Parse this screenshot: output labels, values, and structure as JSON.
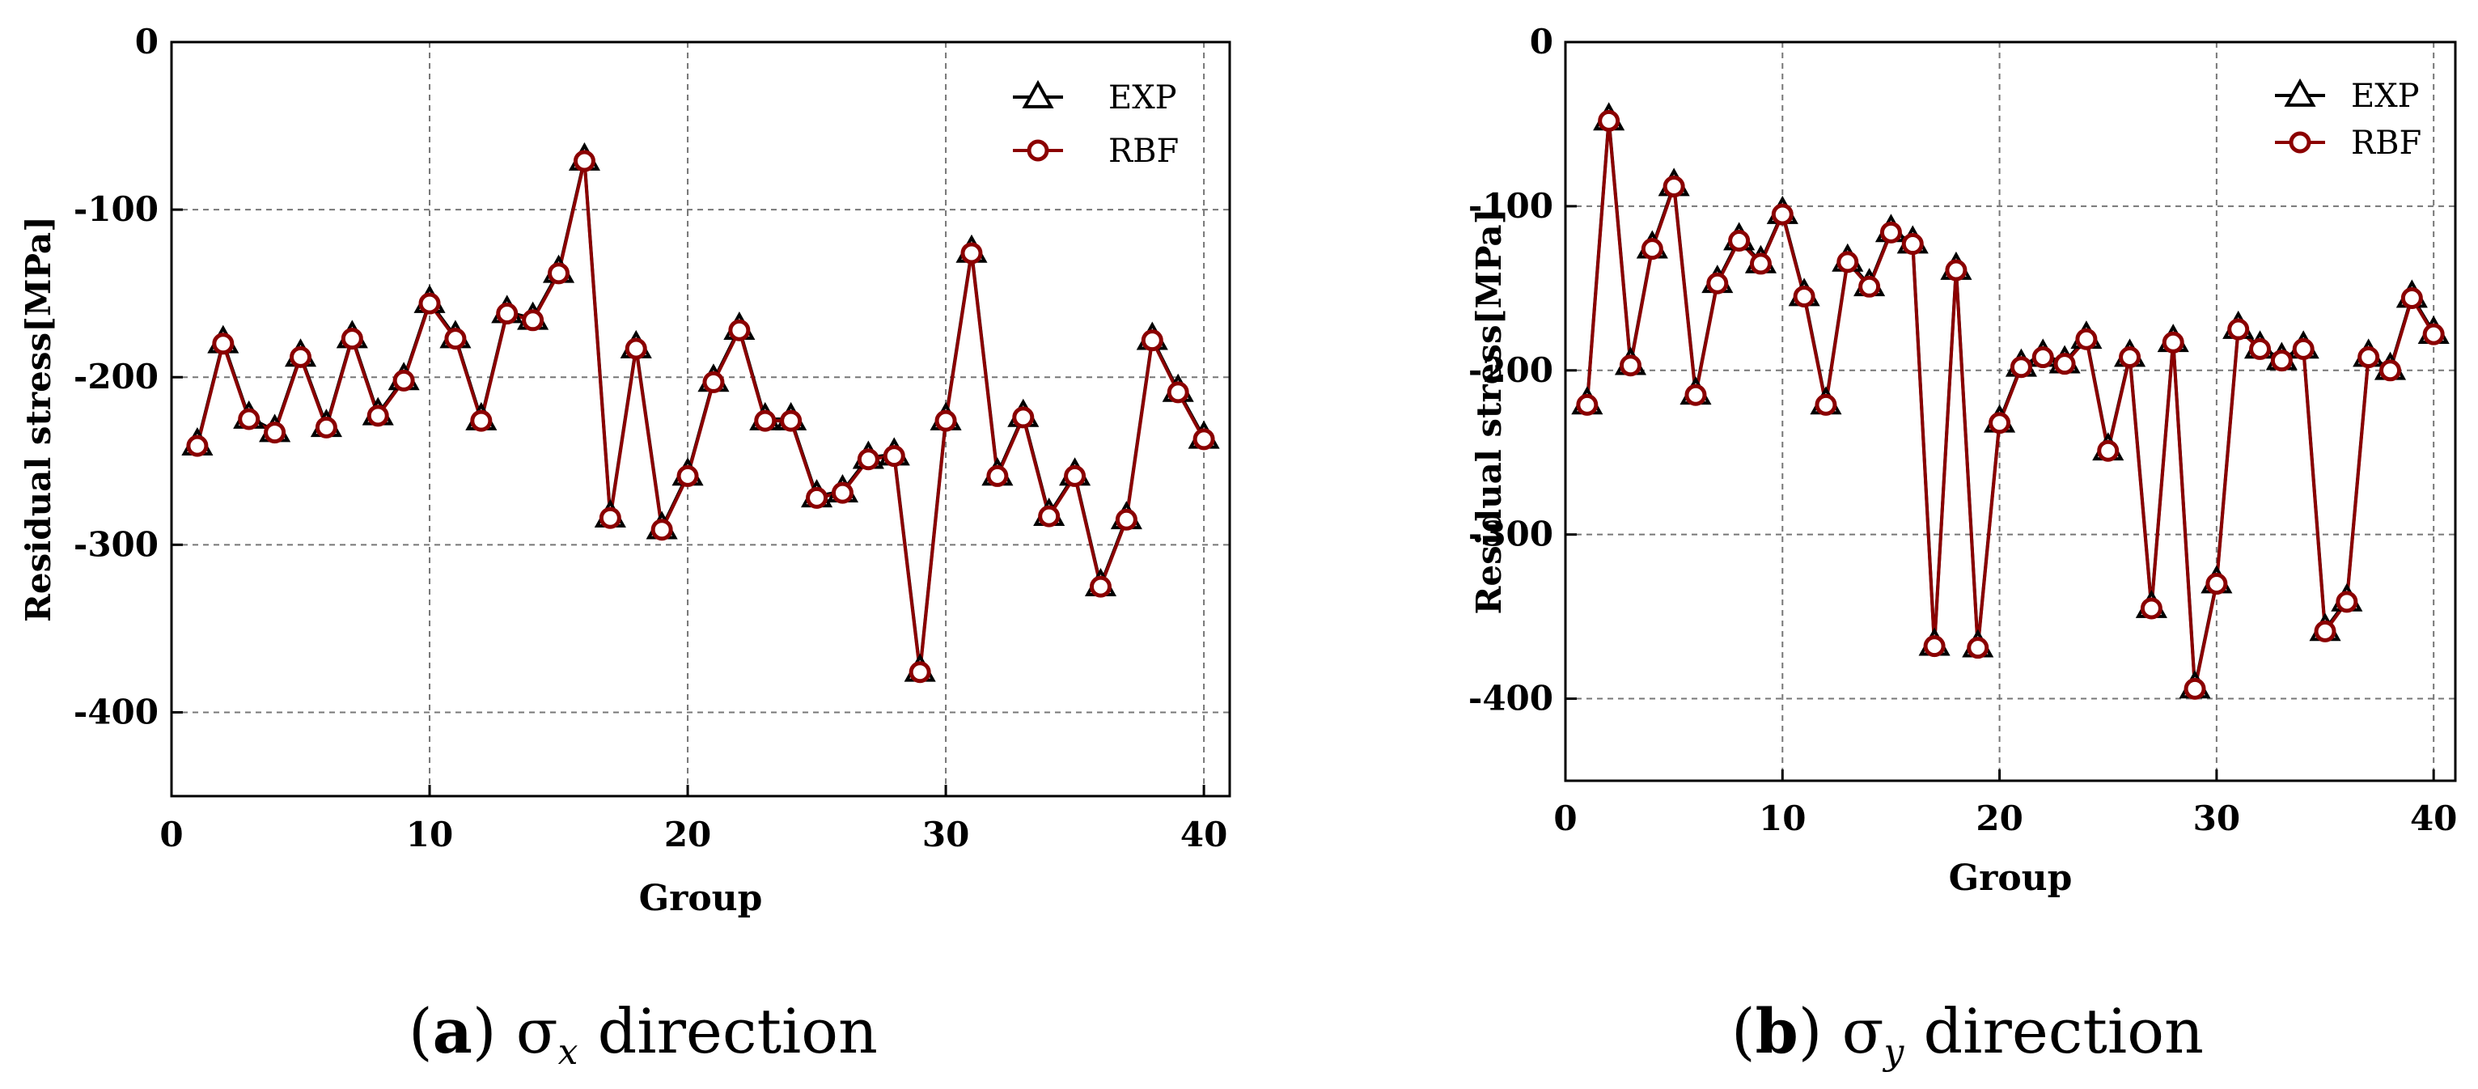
{
  "legend": {
    "exp_label": "EXP",
    "rbf_label": "RBF"
  },
  "colors": {
    "rbf": "#8B0000",
    "exp": "#000000",
    "grid": "#777777",
    "axis": "#000000"
  },
  "captions": [
    {
      "letter": "a",
      "symbol": "σ",
      "subscript": "x",
      "rest": "direction"
    },
    {
      "letter": "b",
      "symbol": "σ",
      "subscript": "y",
      "rest": "direction"
    }
  ],
  "chart_data": [
    {
      "type": "line",
      "title": "",
      "xlabel": "Group",
      "ylabel": "Residual stress[MPa]",
      "xlim": [
        0,
        41
      ],
      "ylim": [
        -450,
        0
      ],
      "xticks": [
        0,
        10,
        20,
        30,
        40
      ],
      "yticks": [
        0,
        -100,
        -200,
        -300,
        -400
      ],
      "grid": true,
      "legend_position": "top-right",
      "x": [
        1,
        2,
        3,
        4,
        5,
        6,
        7,
        8,
        9,
        10,
        11,
        12,
        13,
        14,
        15,
        16,
        17,
        18,
        19,
        20,
        21,
        22,
        23,
        24,
        25,
        26,
        27,
        28,
        29,
        30,
        31,
        32,
        33,
        34,
        35,
        36,
        37,
        38,
        39,
        40
      ],
      "series": [
        {
          "name": "EXP",
          "marker": "triangle",
          "values": [
            -240,
            -179,
            -224,
            -232,
            -187,
            -229,
            -176,
            -222,
            -201,
            -155,
            -176,
            -225,
            -161,
            -165,
            -137,
            -70,
            -283,
            -182,
            -290,
            -258,
            -202,
            -171,
            -225,
            -225,
            -271,
            -268,
            -248,
            -246,
            -375,
            -225,
            -125,
            -258,
            -223,
            -282,
            -258,
            -324,
            -284,
            -177,
            -208,
            -236
          ]
        },
        {
          "name": "RBF",
          "marker": "circle",
          "values": [
            -241,
            -180,
            -225,
            -233,
            -188,
            -230,
            -177,
            -223,
            -202,
            -156,
            -177,
            -226,
            -162,
            -166,
            -138,
            -71,
            -284,
            -183,
            -291,
            -259,
            -203,
            -172,
            -226,
            -226,
            -272,
            -269,
            -249,
            -247,
            -376,
            -226,
            -126,
            -259,
            -224,
            -283,
            -259,
            -325,
            -285,
            -178,
            -209,
            -237
          ]
        }
      ]
    },
    {
      "type": "line",
      "title": "",
      "xlabel": "Group",
      "ylabel": "Residual stress[MPa]",
      "xlim": [
        0,
        41
      ],
      "ylim": [
        -450,
        0
      ],
      "xticks": [
        0,
        10,
        20,
        30,
        40
      ],
      "yticks": [
        0,
        -100,
        -200,
        -300,
        -400
      ],
      "grid": true,
      "legend_position": "top-right",
      "x": [
        1,
        2,
        3,
        4,
        5,
        6,
        7,
        8,
        9,
        10,
        11,
        12,
        13,
        14,
        15,
        16,
        17,
        18,
        19,
        20,
        21,
        22,
        23,
        24,
        25,
        26,
        27,
        28,
        29,
        30,
        31,
        32,
        33,
        34,
        35,
        36,
        37,
        38,
        39,
        40
      ],
      "series": [
        {
          "name": "EXP",
          "marker": "triangle",
          "values": [
            -220,
            -47,
            -196,
            -125,
            -87,
            -214,
            -146,
            -120,
            -134,
            -104,
            -154,
            -220,
            -133,
            -148,
            -115,
            -122,
            -367,
            -138,
            -368,
            -231,
            -197,
            -191,
            -195,
            -180,
            -248,
            -191,
            -344,
            -182,
            -393,
            -329,
            -174,
            -186,
            -193,
            -186,
            -358,
            -340,
            -191,
            -199,
            -155,
            -177
          ]
        },
        {
          "name": "RBF",
          "marker": "circle",
          "values": [
            -221,
            -48,
            -197,
            -126,
            -88,
            -215,
            -147,
            -121,
            -135,
            -105,
            -155,
            -221,
            -134,
            -149,
            -116,
            -123,
            -368,
            -139,
            -369,
            -232,
            -198,
            -192,
            -196,
            -181,
            -249,
            -192,
            -345,
            -183,
            -394,
            -330,
            -175,
            -187,
            -194,
            -187,
            -359,
            -341,
            -192,
            -200,
            -156,
            -178
          ]
        }
      ]
    }
  ]
}
